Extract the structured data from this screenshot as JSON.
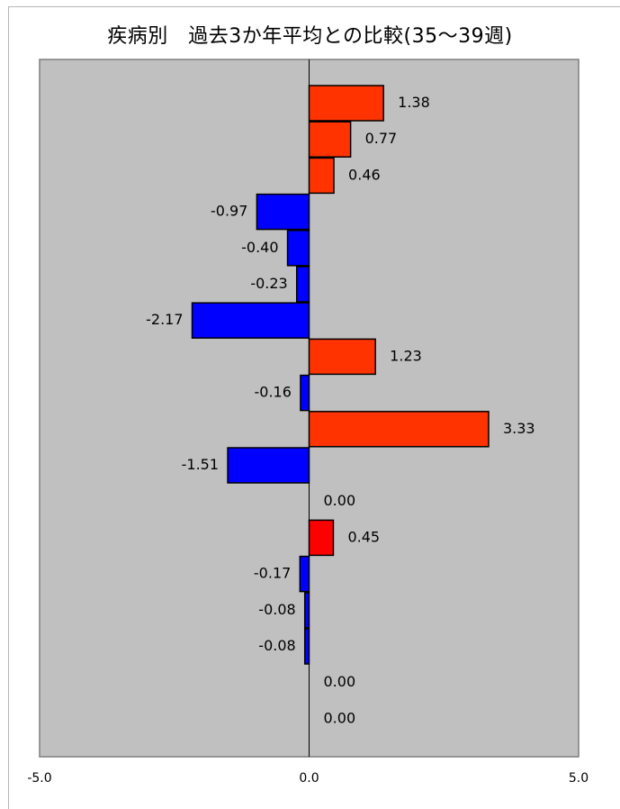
{
  "chart_data": {
    "type": "bar",
    "orientation": "horizontal",
    "title": "疾病別　過去3か年平均との比較(35～39週)",
    "xlim": [
      -5.0,
      5.0
    ],
    "x_tick_labels": [
      "-5.0",
      "0.0",
      "5.0"
    ],
    "values": [
      1.38,
      0.77,
      0.46,
      -0.97,
      -0.4,
      -0.23,
      -2.17,
      1.23,
      -0.16,
      3.33,
      -1.51,
      0.0,
      0.45,
      -0.17,
      -0.08,
      -0.08,
      0.0,
      0.0
    ],
    "value_labels": [
      "1.38",
      "0.77",
      "0.46",
      "-0.97",
      "-0.40",
      "-0.23",
      "-2.17",
      "1.23",
      "-0.16",
      "3.33",
      "-1.51",
      "0.00",
      "0.45",
      "-0.17",
      "-0.08",
      "-0.08",
      "0.00",
      "0.00"
    ],
    "grid": false,
    "legend": "none",
    "plot_background": "#c0c0c0",
    "colors": {
      "positive": "#ff3300",
      "highlight_positive": "#ff0000",
      "negative": "#0000ff"
    }
  }
}
